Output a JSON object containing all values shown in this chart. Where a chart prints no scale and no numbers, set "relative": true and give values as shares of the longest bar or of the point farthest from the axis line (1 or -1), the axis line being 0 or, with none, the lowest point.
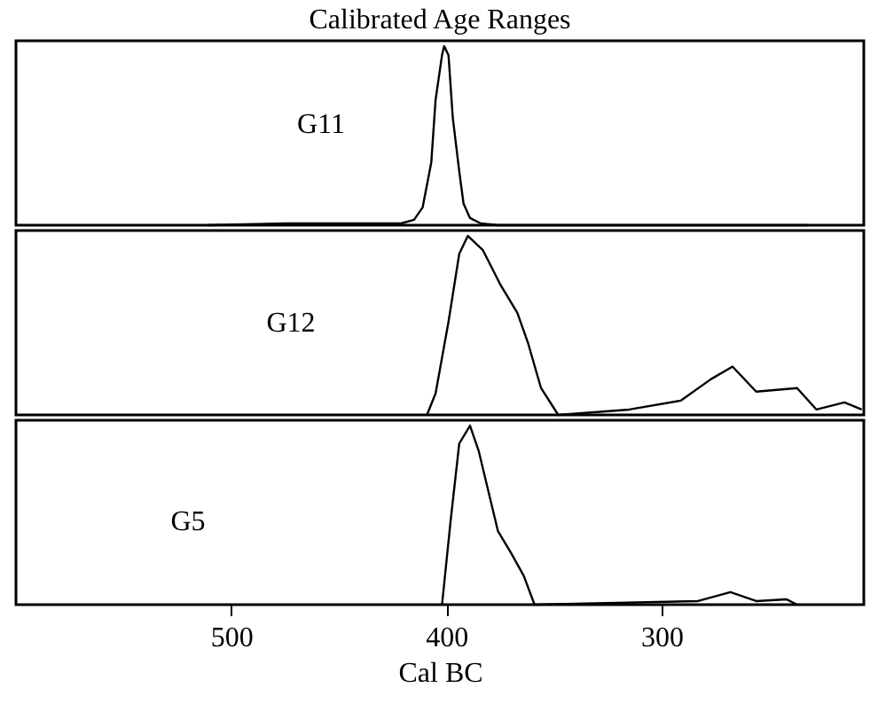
{
  "chart_data": [
    {
      "type": "line",
      "title": "Calibrated Age Ranges",
      "relative": true,
      "xlim": [
        600,
        206
      ],
      "xticks": [
        500,
        400,
        300
      ],
      "tick_labels": false,
      "legend": false,
      "marker": "none",
      "line_style": "solid",
      "series": [
        {
          "name": "G11",
          "color": "#000000",
          "x": [
            511,
            474,
            446,
            421,
            415,
            411,
            407,
            405,
            402,
            401,
            399,
            397,
            394,
            392,
            389,
            384,
            376,
            364,
            232
          ],
          "values": [
            0,
            0.01,
            0.01,
            0.01,
            0.03,
            0.1,
            0.35,
            0.7,
            0.95,
            1.0,
            0.95,
            0.6,
            0.3,
            0.12,
            0.04,
            0.01,
            0,
            0,
            0
          ]
        }
      ]
    },
    {
      "type": "line",
      "relative": true,
      "xlim": [
        600,
        206
      ],
      "xticks": [
        500,
        400,
        300
      ],
      "tick_labels": false,
      "legend": false,
      "marker": "none",
      "line_style": "solid",
      "series": [
        {
          "name": "G12",
          "color": "#000000",
          "x": [
            409,
            405,
            399,
            394,
            390,
            383,
            375,
            367,
            362,
            356,
            348,
            315,
            291,
            277,
            267,
            256,
            237,
            228,
            215,
            207
          ],
          "values": [
            0,
            0.12,
            0.52,
            0.9,
            1,
            0.92,
            0.73,
            0.57,
            0.4,
            0.15,
            0,
            0.03,
            0.08,
            0.2,
            0.27,
            0.13,
            0.15,
            0.03,
            0.07,
            0.03
          ]
        }
      ]
    },
    {
      "type": "line",
      "xlabel": "Cal BC",
      "relative": true,
      "xlim": [
        600,
        206
      ],
      "xticks": [
        500,
        400,
        300
      ],
      "tick_labels": "x",
      "legend": false,
      "marker": "none",
      "line_style": "solid",
      "series": [
        {
          "name": "G5",
          "color": "#000000",
          "x": [
            402,
            398,
            394,
            389,
            385,
            376,
            370,
            364,
            359,
            283,
            268,
            256,
            242,
            237
          ],
          "values": [
            0,
            0.47,
            0.9,
            1,
            0.86,
            0.41,
            0.29,
            0.16,
            0,
            0.02,
            0.07,
            0.02,
            0.03,
            0
          ]
        }
      ]
    }
  ]
}
